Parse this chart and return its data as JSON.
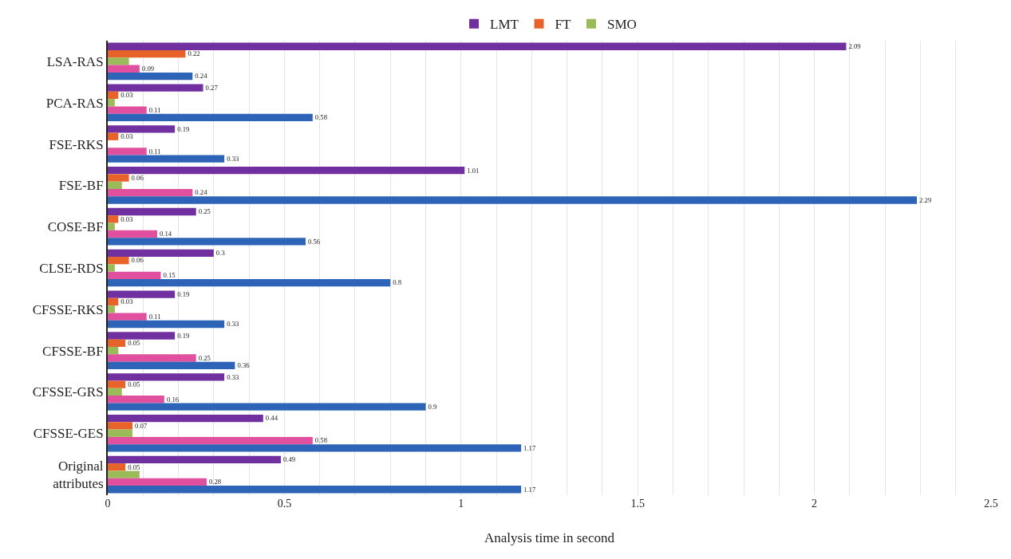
{
  "chart_data": {
    "type": "bar",
    "orientation": "horizontal",
    "xlabel": "Analysis time in second",
    "categories": [
      "LSA-RAS",
      "PCA-RAS",
      "FSE-RKS",
      "FSE-BF",
      "COSE-BF",
      "CLSE-RDS",
      "CFSSE-RKS",
      "CFSSE-BF",
      "CFSSE-GRS",
      "CFSSE-GES",
      "Original attributes"
    ],
    "series": [
      {
        "name": "LMT",
        "color": "#7030a0",
        "values": [
          2.09,
          0.27,
          0.19,
          1.01,
          0.25,
          0.3,
          0.19,
          0.19,
          0.33,
          0.44,
          0.49
        ],
        "value_labels": [
          "2.09",
          "0.27",
          "0.19",
          "1.01",
          "0.25",
          "0.3",
          "0.19",
          "0.19",
          "0.33",
          "0.44",
          "0.49"
        ]
      },
      {
        "name": "FT",
        "color": "#e8632a",
        "values": [
          0.22,
          0.03,
          0.03,
          0.06,
          0.03,
          0.06,
          0.03,
          0.05,
          0.05,
          0.07,
          0.05
        ],
        "value_labels": [
          "0.22",
          "0.03",
          "0.03",
          "0.06",
          "0.03",
          "0.06",
          "0.03",
          "0.05",
          "0.05",
          "0.07",
          "0.05"
        ]
      },
      {
        "name": "SMO",
        "color": "#9bbb59",
        "values": [
          0.06,
          0.02,
          0,
          0.04,
          0.02,
          0.02,
          0.02,
          0.03,
          0.04,
          0.07,
          0.09
        ]
      },
      {
        "color": "#e0509f",
        "values": [
          0.09,
          0.11,
          0.11,
          0.24,
          0.14,
          0.15,
          0.11,
          0.25,
          0.16,
          0.58,
          0.28
        ],
        "value_labels": [
          "0.09",
          "0.11",
          "0.11",
          "0.24",
          "0.14",
          "0.15",
          "0.11",
          "0.25",
          "0.16",
          "0.58",
          "0.28"
        ]
      },
      {
        "color": "#2e64b8",
        "values": [
          0.24,
          0.58,
          0.33,
          2.29,
          0.56,
          0.8,
          0.33,
          0.36,
          0.9,
          1.17,
          1.17
        ],
        "value_labels": [
          "0.24",
          "0.58",
          "0.33",
          "2.29",
          "0.56",
          "0.8",
          "0.33",
          "0.36",
          "0.9",
          "1.17",
          "1.17"
        ]
      }
    ],
    "xlim": [
      0,
      2.5
    ],
    "xticks": [
      0,
      {
        "value": 0.1,
        "label": null
      },
      {
        "value": 0.2,
        "label": null
      },
      {
        "value": 0.3,
        "label": null
      },
      {
        "value": 0.4,
        "label": null
      },
      0.5,
      {
        "value": 0.6,
        "label": null
      },
      {
        "value": 0.7,
        "label": null
      },
      {
        "value": 0.8,
        "label": null
      },
      {
        "value": 0.9,
        "label": null
      },
      1,
      {
        "value": 1.1,
        "label": null
      },
      {
        "value": 1.2,
        "label": null
      },
      {
        "value": 1.3,
        "label": null
      },
      {
        "value": 1.4,
        "label": null
      },
      1.5,
      {
        "value": 1.6,
        "label": null
      },
      {
        "value": 1.7,
        "label": null
      },
      {
        "value": 1.8,
        "label": null
      },
      {
        "value": 1.9,
        "label": null
      },
      2,
      {
        "value": 2.1,
        "label": null
      },
      {
        "value": 2.2,
        "label": null
      },
      {
        "value": 2.3,
        "label": null
      },
      {
        "value": 2.4,
        "label": null
      },
      2.5
    ],
    "grid": "x",
    "legend": "top"
  }
}
